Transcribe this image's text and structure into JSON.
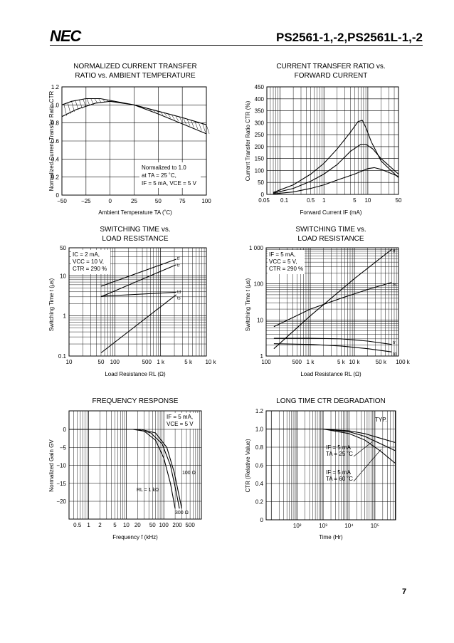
{
  "header": {
    "logo": "NEC",
    "title": "PS2561-1,-2,PS2561L-1,-2"
  },
  "page_number": "7",
  "charts": {
    "c1": {
      "title": [
        "NORMALIZED CURRENT TRANSFER",
        "RATIO vs. AMBIENT TEMPERATURE"
      ],
      "ylabel": "Normalized Current Transfer Ratio  CTR",
      "xlabel": "Ambient Temperature  TA (˚C)",
      "yticks": [
        "1.2",
        "1.0",
        "0.8",
        "0.6",
        "0.4",
        "0.2",
        "0"
      ],
      "xticks": [
        "−50",
        "−25",
        "0",
        "25",
        "50",
        "75",
        "100"
      ],
      "note": [
        "Normalized to 1.0",
        "at TA = 25 ˚C,",
        "IF = 5 mA, VCE = 5 V"
      ]
    },
    "c2": {
      "title": [
        "CURRENT TRANSFER RATIO vs.",
        "FORWARD CURRENT"
      ],
      "ylabel": "Current Transfer Ratio  CTR (%)",
      "xlabel": "Forward Current  IF (mA)",
      "yticks": [
        "450",
        "400",
        "350",
        "300",
        "250",
        "200",
        "150",
        "100",
        "50",
        "0"
      ],
      "xticks": [
        "0.05",
        "0.1",
        "0.5",
        "1",
        "5",
        "10",
        "50"
      ]
    },
    "c3": {
      "title": [
        "SWITCHING TIME vs.",
        "LOAD RESISTANCE"
      ],
      "ylabel": "Switching Time  t (μs)",
      "xlabel": "Load Resistance  RL (Ω)",
      "yticks": [
        "50",
        "10",
        "1",
        "0.1"
      ],
      "xticks": [
        "10",
        "50",
        "100",
        "500",
        "1 k",
        "5 k",
        "10 k"
      ],
      "note": [
        "IC = 2 mA,",
        "VCC = 10 V,",
        "CTR = 290 %"
      ],
      "curve_labels": [
        "tf",
        "tr",
        "td",
        "ts"
      ]
    },
    "c4": {
      "title": [
        "SWITCHING TIME vs.",
        "LOAD RESISTANCE"
      ],
      "ylabel": "Switching Time  t (μs)",
      "xlabel": "Load Resistance  RL (Ω)",
      "yticks": [
        "1 000",
        "100",
        "10",
        "1"
      ],
      "xticks": [
        "100",
        "500",
        "1 k",
        "5 k",
        "10 k",
        "50 k",
        "100 k"
      ],
      "note": [
        "IF = 5 mA,",
        "VCC = 5 V,",
        "CTR = 290 %"
      ],
      "curve_labels": [
        "tf",
        "ts",
        "tr",
        "td"
      ]
    },
    "c5": {
      "title": [
        "FREQUENCY RESPONSE"
      ],
      "ylabel": "Normalized Gain  GV",
      "xlabel": "Frequency  f (kHz)",
      "yticks": [
        "0",
        "−5",
        "−10",
        "−15",
        "−20"
      ],
      "xticks": [
        "0.5",
        "1",
        "2",
        "5",
        "10",
        "20",
        "50",
        "100",
        "200",
        "500"
      ],
      "note": [
        "IF = 5 mA,",
        "VCE = 5 V"
      ],
      "curve_labels": [
        "100 Ω",
        "RL = 1 kΩ",
        "300 Ω"
      ]
    },
    "c6": {
      "title": [
        "LONG TIME CTR DEGRADATION"
      ],
      "ylabel": "CTR  (Relative Value)",
      "xlabel": "Time (Hr)",
      "yticks": [
        "1.2",
        "1.0",
        "0.8",
        "0.6",
        "0.4",
        "0.2",
        "0"
      ],
      "xticks": [
        "10²",
        "10³",
        "10⁴",
        "10⁵"
      ],
      "typ": "TYP.",
      "note1": [
        "IF = 5 mA",
        "TA = 25 ˚C"
      ],
      "note2": [
        "IF = 5 mA",
        "TA = 60 ˚C"
      ]
    }
  }
}
